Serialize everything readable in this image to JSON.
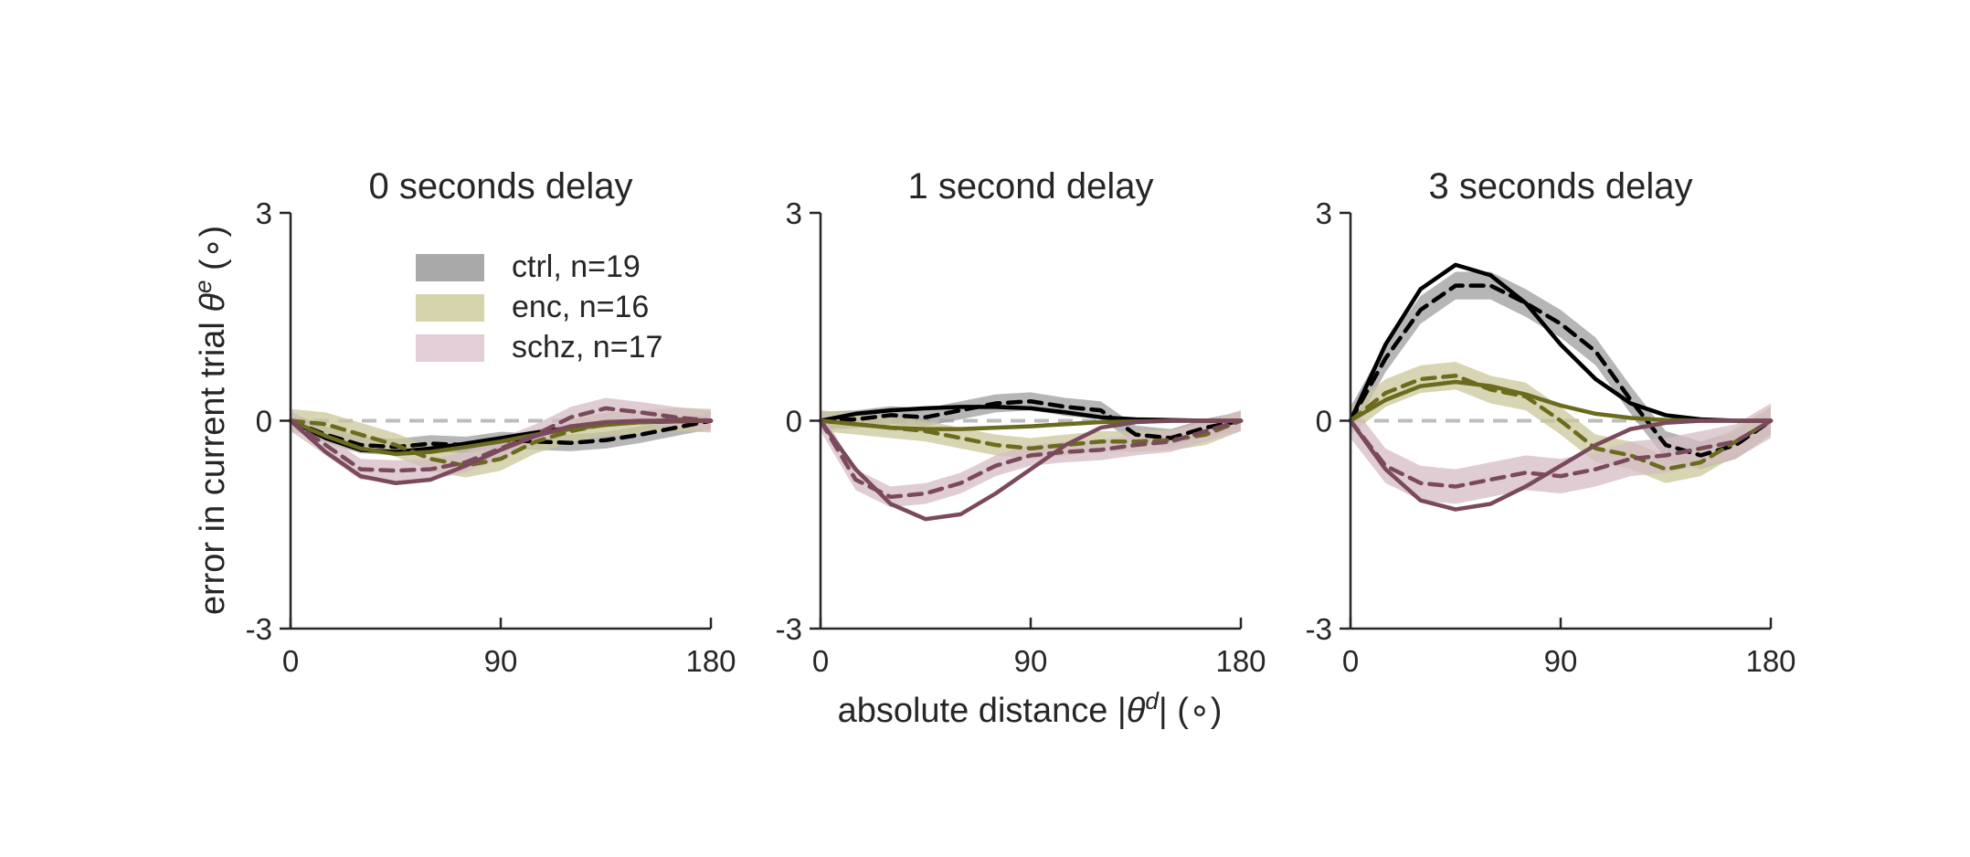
{
  "figure": {
    "ylabel_prefix": "error in current trial ",
    "ylabel_symbol": "θ",
    "ylabel_sup": "e",
    "ylabel_unit": " (∘)",
    "xlabel_prefix": "absolute distance |",
    "xlabel_symbol": "θ",
    "xlabel_sup": "d",
    "xlabel_suffix": "| (∘)"
  },
  "legend": {
    "placement": "top-left of first panel",
    "items": [
      {
        "label": "ctrl, n=19",
        "color": "#000000"
      },
      {
        "label": "enc, n=16",
        "color": "#6b6b1e"
      },
      {
        "label": "schz, n=17",
        "color": "#7a4a5c"
      }
    ]
  },
  "colors": {
    "ctrl_line": "#000000",
    "ctrl_band": "#9e9e9e",
    "enc_line": "#6b6b1e",
    "enc_band": "#c9c79a",
    "schz_line": "#7a4a5c",
    "schz_band": "#d6bcc6",
    "zero_line": "#bdbdbd"
  },
  "chart_data": [
    {
      "type": "line",
      "title": "0 seconds delay",
      "xlim": [
        0,
        180
      ],
      "ylim": [
        -3,
        3
      ],
      "xticks": [
        "0",
        "90",
        "180"
      ],
      "yticks": [
        "-3",
        "0",
        "3"
      ],
      "x": [
        0,
        15,
        30,
        45,
        60,
        75,
        90,
        105,
        120,
        135,
        150,
        165,
        180
      ],
      "series": [
        {
          "name": "ctrl, n=19",
          "group": "ctrl",
          "style": "solid",
          "values": [
            0,
            -0.25,
            -0.42,
            -0.45,
            -0.4,
            -0.33,
            -0.25,
            -0.17,
            -0.1,
            -0.05,
            -0.02,
            -0.01,
            0
          ]
        },
        {
          "name": "ctrl, n=19",
          "group": "ctrl",
          "style": "dashed",
          "band": 0.12,
          "values": [
            0,
            -0.2,
            -0.35,
            -0.38,
            -0.33,
            -0.35,
            -0.28,
            -0.3,
            -0.32,
            -0.28,
            -0.2,
            -0.1,
            0
          ]
        },
        {
          "name": "enc, n=16",
          "group": "enc",
          "style": "solid",
          "values": [
            0,
            -0.22,
            -0.4,
            -0.48,
            -0.45,
            -0.38,
            -0.3,
            -0.2,
            -0.12,
            -0.06,
            -0.02,
            -0.01,
            0
          ]
        },
        {
          "name": "enc, n=16",
          "group": "enc",
          "style": "dashed",
          "band": 0.17,
          "values": [
            0,
            -0.05,
            -0.2,
            -0.35,
            -0.55,
            -0.65,
            -0.55,
            -0.3,
            -0.15,
            -0.05,
            -0.02,
            0.02,
            0
          ]
        },
        {
          "name": "schz, n=17",
          "group": "schz",
          "style": "solid",
          "values": [
            0,
            -0.45,
            -0.8,
            -0.9,
            -0.85,
            -0.65,
            -0.42,
            -0.22,
            -0.08,
            -0.02,
            0,
            0,
            0
          ]
        },
        {
          "name": "schz, n=17",
          "group": "schz",
          "style": "dashed",
          "band": 0.15,
          "values": [
            0,
            -0.35,
            -0.7,
            -0.72,
            -0.7,
            -0.6,
            -0.4,
            -0.2,
            0.05,
            0.18,
            0.12,
            0.05,
            0
          ]
        }
      ]
    },
    {
      "type": "line",
      "title": "1 second delay",
      "xlim": [
        0,
        180
      ],
      "ylim": [
        -3,
        3
      ],
      "xticks": [
        "0",
        "90",
        "180"
      ],
      "yticks": [
        "-3",
        "0",
        "3"
      ],
      "x": [
        0,
        15,
        30,
        45,
        60,
        75,
        90,
        105,
        120,
        135,
        150,
        165,
        180
      ],
      "series": [
        {
          "name": "ctrl, n=19",
          "group": "ctrl",
          "style": "solid",
          "values": [
            0,
            0.1,
            0.15,
            0.18,
            0.2,
            0.2,
            0.18,
            0.12,
            0.05,
            0.02,
            0.01,
            0,
            0
          ]
        },
        {
          "name": "ctrl, n=19",
          "group": "ctrl",
          "style": "dashed",
          "band": 0.13,
          "values": [
            0,
            0.02,
            0.08,
            0.05,
            0.15,
            0.25,
            0.28,
            0.2,
            0.15,
            -0.2,
            -0.25,
            -0.1,
            0
          ]
        },
        {
          "name": "enc, n=16",
          "group": "enc",
          "style": "solid",
          "values": [
            0,
            -0.05,
            -0.1,
            -0.12,
            -0.12,
            -0.1,
            -0.08,
            -0.05,
            -0.02,
            -0.01,
            0,
            0,
            0
          ]
        },
        {
          "name": "enc, n=16",
          "group": "enc",
          "style": "dashed",
          "band": 0.15,
          "values": [
            0,
            -0.05,
            -0.1,
            -0.15,
            -0.25,
            -0.35,
            -0.4,
            -0.35,
            -0.3,
            -0.3,
            -0.28,
            -0.2,
            0
          ]
        },
        {
          "name": "schz, n=17",
          "group": "schz",
          "style": "solid",
          "values": [
            0,
            -0.7,
            -1.2,
            -1.42,
            -1.35,
            -1.05,
            -0.7,
            -0.35,
            -0.1,
            -0.02,
            0,
            0,
            0
          ]
        },
        {
          "name": "schz, n=17",
          "group": "schz",
          "style": "dashed",
          "band": 0.15,
          "values": [
            0,
            -0.85,
            -1.1,
            -1.05,
            -0.9,
            -0.65,
            -0.5,
            -0.45,
            -0.42,
            -0.35,
            -0.3,
            -0.15,
            0
          ]
        }
      ]
    },
    {
      "type": "line",
      "title": "3 seconds delay",
      "xlim": [
        0,
        180
      ],
      "ylim": [
        -3,
        3
      ],
      "xticks": [
        "0",
        "90",
        "180"
      ],
      "yticks": [
        "-3",
        "0",
        "3"
      ],
      "x": [
        0,
        15,
        30,
        45,
        60,
        75,
        90,
        105,
        120,
        135,
        150,
        165,
        180
      ],
      "series": [
        {
          "name": "ctrl, n=19",
          "group": "ctrl",
          "style": "solid",
          "values": [
            0,
            1.1,
            1.9,
            2.25,
            2.1,
            1.7,
            1.1,
            0.6,
            0.25,
            0.08,
            0.02,
            0,
            0
          ]
        },
        {
          "name": "ctrl, n=19",
          "group": "ctrl",
          "style": "dashed",
          "band": 0.2,
          "values": [
            0,
            0.9,
            1.6,
            1.95,
            1.95,
            1.7,
            1.4,
            1.0,
            0.3,
            -0.35,
            -0.5,
            -0.35,
            0
          ]
        },
        {
          "name": "enc, n=16",
          "group": "enc",
          "style": "solid",
          "values": [
            0,
            0.3,
            0.5,
            0.56,
            0.5,
            0.38,
            0.22,
            0.1,
            0.04,
            0.01,
            0,
            0,
            0
          ]
        },
        {
          "name": "enc, n=16",
          "group": "enc",
          "style": "dashed",
          "band": 0.2,
          "values": [
            0,
            0.4,
            0.6,
            0.65,
            0.45,
            0.35,
            0.0,
            -0.4,
            -0.5,
            -0.7,
            -0.6,
            -0.3,
            0
          ]
        },
        {
          "name": "schz, n=17",
          "group": "schz",
          "style": "solid",
          "values": [
            0,
            -0.7,
            -1.15,
            -1.28,
            -1.2,
            -0.95,
            -0.65,
            -0.35,
            -0.12,
            -0.03,
            0,
            0,
            0
          ]
        },
        {
          "name": "schz, n=17",
          "group": "schz",
          "style": "dashed",
          "band": 0.25,
          "values": [
            0,
            -0.65,
            -0.9,
            -0.95,
            -0.85,
            -0.75,
            -0.8,
            -0.7,
            -0.55,
            -0.5,
            -0.4,
            -0.3,
            0
          ]
        }
      ]
    }
  ]
}
